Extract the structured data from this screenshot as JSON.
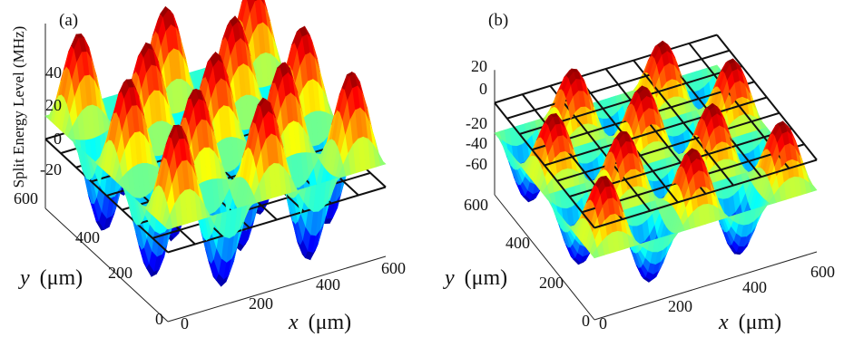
{
  "chart_data": [
    {
      "type": "surface",
      "panel_label": "(a)",
      "zlabel": "Split Energy Level (MHz)",
      "xlabel_var": "x",
      "xlabel_unit": "(μm)",
      "ylabel_var": "y",
      "ylabel_unit": "(μm)",
      "xlim": [
        0,
        600
      ],
      "ylim": [
        0,
        600
      ],
      "zlim": [
        -30,
        50
      ],
      "x_ticks": [
        "0",
        "200",
        "400",
        "600"
      ],
      "y_ticks": [
        "0",
        "200",
        "400",
        "600"
      ],
      "z_ticks": [
        "-20",
        "0",
        "20",
        "40"
      ],
      "plane_z": 0,
      "peaks_x": 5,
      "peaks_y": 5,
      "z_max": 48,
      "z_min": -28,
      "colormap": "jet"
    },
    {
      "type": "surface",
      "panel_label": "(b)",
      "xlabel_var": "x",
      "xlabel_unit": "(μm)",
      "ylabel_var": "y",
      "ylabel_unit": "(μm)",
      "xlim": [
        0,
        600
      ],
      "ylim": [
        0,
        600
      ],
      "zlim": [
        -70,
        25
      ],
      "x_ticks": [
        "0",
        "200",
        "400",
        "600"
      ],
      "y_ticks": [
        "0",
        "200",
        "400",
        "600"
      ],
      "z_ticks": [
        "-60",
        "-40",
        "-20",
        "0",
        "20"
      ],
      "plane_z": 0,
      "peaks_x": 5,
      "peaks_y": 4,
      "z_max": 22,
      "z_min": -68,
      "colormap": "jet"
    }
  ]
}
